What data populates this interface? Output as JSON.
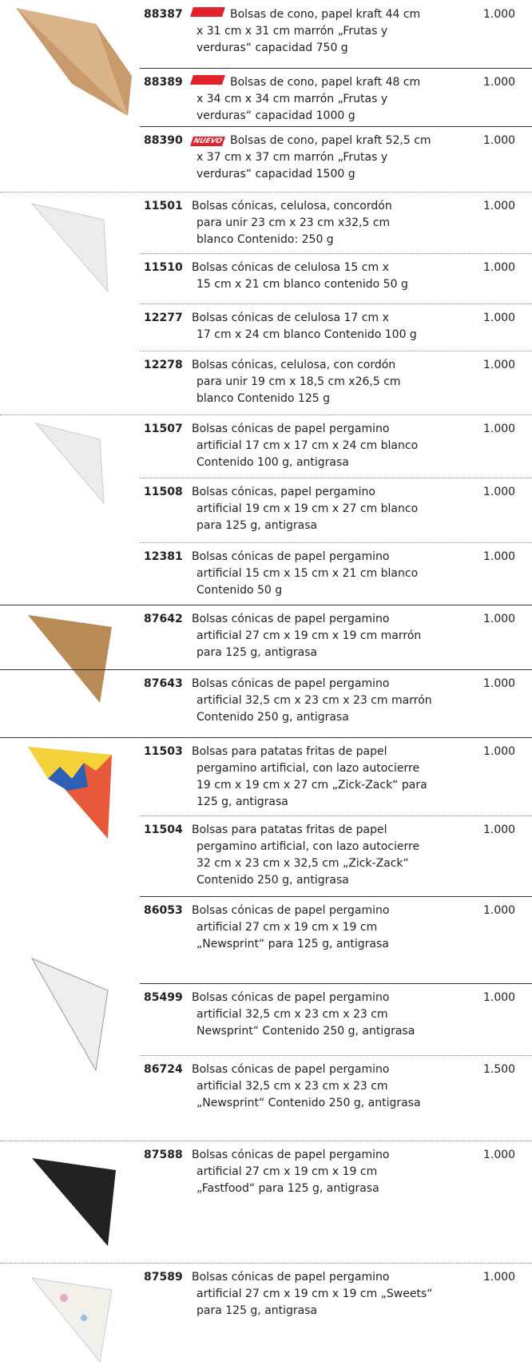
{
  "items": [
    {
      "code": "88387",
      "badge": true,
      "lines": [
        "Bolsas de cono, papel kraft 44 cm",
        "x 31 cm x 31 cm marrón „Frutas y",
        "verduras“ capacidad 750 g"
      ],
      "qty": "1.000"
    },
    {
      "code": "88389",
      "badge": true,
      "lines": [
        "Bolsas de cono, papel kraft 48 cm",
        "x 34 cm x 34 cm marrón „Frutas y",
        "verduras“ capacidad 1000 g"
      ],
      "qty": "1.000"
    },
    {
      "code": "88390",
      "badge": "NUEVO",
      "lines": [
        "Bolsas de cono, papel kraft 52,5 cm",
        "x 37 cm x 37 cm marrón „Frutas y",
        "verduras“ capacidad 1500 g"
      ],
      "qty": "1.000"
    },
    {
      "code": "11501",
      "lines": [
        "Bolsas cónicas, celulosa, concordón",
        "para unir 23 cm x 23 cm x32,5 cm",
        "blanco Contenido: 250 g"
      ],
      "qty": "1.000"
    },
    {
      "code": "11510",
      "lines": [
        "Bolsas cónicas de celulosa 15 cm x",
        "15 cm x 21 cm blanco contenido 50 g"
      ],
      "qty": "1.000"
    },
    {
      "code": "12277",
      "lines": [
        "Bolsas cónicas de celulosa 17 cm x",
        "17 cm x 24 cm blanco Contenido 100 g"
      ],
      "qty": "1.000"
    },
    {
      "code": "12278",
      "lines": [
        "Bolsas cónicas, celulosa, con cordón",
        "para unir 19 cm x 18,5 cm x26,5 cm",
        "blanco Contenido 125 g"
      ],
      "qty": "1.000"
    },
    {
      "code": "11507",
      "lines": [
        "Bolsas cónicas de papel pergamino",
        "artificial 17 cm x 17 cm x 24 cm blanco",
        "Contenido 100 g, antigrasa"
      ],
      "qty": "1.000"
    },
    {
      "code": "11508",
      "lines": [
        "Bolsas cónicas, papel pergamino",
        "artificial 19 cm x 19 cm x 27 cm blanco",
        "para 125 g, antigrasa"
      ],
      "qty": "1.000"
    },
    {
      "code": "12381",
      "lines": [
        "Bolsas cónicas de papel pergamino",
        "artificial 15 cm x 15 cm x 21 cm blanco",
        "Contenido 50 g"
      ],
      "qty": "1.000"
    },
    {
      "code": "87642",
      "lines": [
        "Bolsas cónicas de papel pergamino",
        "artificial 27 cm x 19 cm x 19 cm marrón",
        "para 125 g, antigrasa"
      ],
      "qty": "1.000"
    },
    {
      "code": "87643",
      "lines": [
        "Bolsas cónicas de papel pergamino",
        "artificial 32,5 cm x 23 cm x 23 cm marrón",
        "Contenido 250 g, antigrasa"
      ],
      "qty": "1.000"
    },
    {
      "code": "11503",
      "lines": [
        "Bolsas para patatas fritas de papel",
        "pergamino artificial, con lazo autocierre",
        "19 cm x 19 cm x 27 cm „Zick-Zack“ para",
        "125 g, antigrasa"
      ],
      "qty": "1.000"
    },
    {
      "code": "11504",
      "lines": [
        "Bolsas para patatas fritas de papel",
        "pergamino artificial, con lazo autocierre",
        "32 cm x 23 cm x 32,5 cm „Zick-Zack“",
        "Contenido 250 g, antigrasa"
      ],
      "qty": "1.000"
    },
    {
      "code": "86053",
      "lines": [
        "Bolsas cónicas de papel pergamino",
        "artificial 27 cm x 19 cm x 19 cm",
        "„Newsprint“ para 125 g, antigrasa"
      ],
      "qty": "1.000"
    },
    {
      "code": "85499",
      "lines": [
        "Bolsas cónicas de papel pergamino",
        "artificial 32,5 cm x 23 cm x 23 cm",
        "Newsprint“ Contenido 250 g, antigrasa"
      ],
      "qty": "1.000"
    },
    {
      "code": "86724",
      "lines": [
        "Bolsas cónicas de papel pergamino",
        "artificial 32,5 cm x 23 cm x 23 cm",
        "„Newsprint“ Contenido 250 g, antigrasa"
      ],
      "qty": "1.500"
    },
    {
      "code": "87588",
      "lines": [
        "Bolsas cónicas de papel pergamino",
        "artificial 27 cm x 19 cm x 19 cm",
        "„Fastfood“ para 125 g, antigrasa"
      ],
      "qty": "1.000"
    },
    {
      "code": "87589",
      "lines": [
        "Bolsas cónicas de papel pergamino",
        "artificial 27 cm x 19 cm x 19 cm „Sweets“",
        "para 125 g, antigrasa"
      ],
      "qty": "1.000"
    }
  ]
}
